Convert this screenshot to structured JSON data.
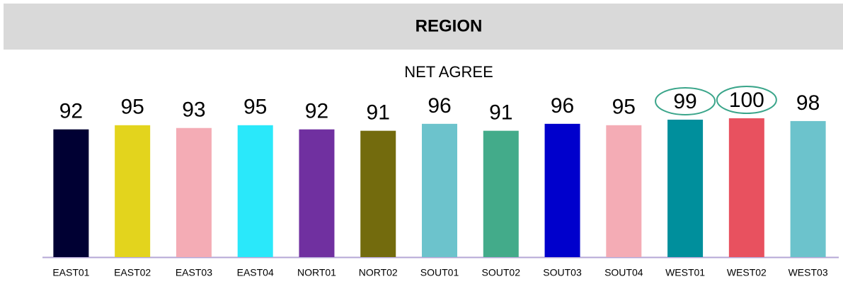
{
  "chart_data": {
    "type": "bar",
    "title": "REGION",
    "subtitle": "NET AGREE",
    "categories": [
      "EAST01",
      "EAST02",
      "EAST03",
      "EAST04",
      "NORT01",
      "NORT02",
      "SOUT01",
      "SOUT02",
      "SOUT03",
      "SOUT04",
      "WEST01",
      "WEST02",
      "WEST03"
    ],
    "values": [
      92,
      95,
      93,
      95,
      92,
      91,
      96,
      91,
      96,
      95,
      99,
      100,
      98
    ],
    "colors": [
      "#000033",
      "#e3d41d",
      "#f4acb5",
      "#2ae8fa",
      "#7030a0",
      "#736b0d",
      "#6cc3cc",
      "#43ab8a",
      "#0000cc",
      "#f4acb5",
      "#008f9c",
      "#e8515f",
      "#6cc3cc"
    ],
    "ylim": [
      0,
      100
    ],
    "highlight": [
      "WEST01",
      "WEST02"
    ],
    "highlight_color": "#3aa58a"
  }
}
